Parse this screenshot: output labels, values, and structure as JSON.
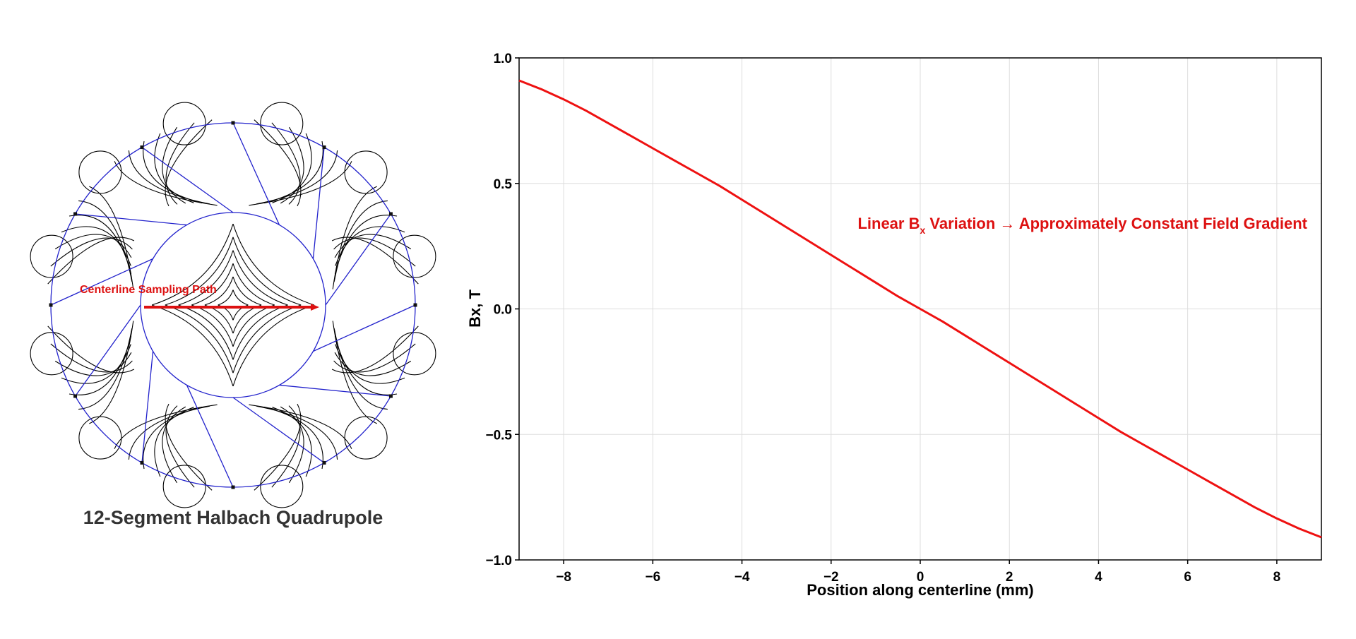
{
  "figure": {
    "title": "12-Segment Halbach Quadrupole",
    "path_label": "Centerline Sampling Path",
    "segments": 12,
    "colors": {
      "field_lines": "#000000",
      "segment_edges": "#2222cc",
      "path_arrow": "#dd1111"
    }
  },
  "chart_data": {
    "type": "line",
    "xlabel": "Position along centerline (mm)",
    "ylabel": "Bx, T",
    "xlim": [
      -9,
      9
    ],
    "ylim": [
      -1.0,
      1.0
    ],
    "xticks": [
      -8,
      -6,
      -4,
      -2,
      0,
      2,
      4,
      6,
      8
    ],
    "xtick_labels": [
      "−8",
      "−6",
      "−4",
      "−2",
      "0",
      "2",
      "4",
      "6",
      "8"
    ],
    "yticks": [
      -1.0,
      -0.5,
      0.0,
      0.5,
      1.0
    ],
    "ytick_labels": [
      "−1.0",
      "−0.5",
      "0.0",
      "0.5",
      "1.0"
    ],
    "grid": true,
    "series": [
      {
        "color": "#ee1111",
        "x": [
          -9,
          -8.5,
          -8,
          -7.5,
          -7,
          -6.5,
          -6,
          -5.5,
          -5,
          -4.5,
          -4,
          -3.5,
          -3,
          -2.5,
          -2,
          -1.5,
          -1,
          -0.5,
          0,
          0.5,
          1,
          1.5,
          2,
          2.5,
          3,
          3.5,
          4,
          4.5,
          5,
          5.5,
          6,
          6.5,
          7,
          7.5,
          8,
          8.5,
          9
        ],
        "y": [
          0.91,
          0.875,
          0.835,
          0.79,
          0.74,
          0.69,
          0.64,
          0.59,
          0.54,
          0.49,
          0.435,
          0.38,
          0.325,
          0.27,
          0.215,
          0.16,
          0.105,
          0.05,
          0.0,
          -0.05,
          -0.105,
          -0.16,
          -0.215,
          -0.27,
          -0.325,
          -0.38,
          -0.435,
          -0.49,
          -0.54,
          -0.59,
          -0.64,
          -0.69,
          -0.74,
          -0.79,
          -0.835,
          -0.875,
          -0.91
        ]
      }
    ],
    "annotation": {
      "pre": "Linear B",
      "sub": "x",
      "post": " Variation → Approximately Constant Field Gradient",
      "color": "#dd1111"
    }
  }
}
